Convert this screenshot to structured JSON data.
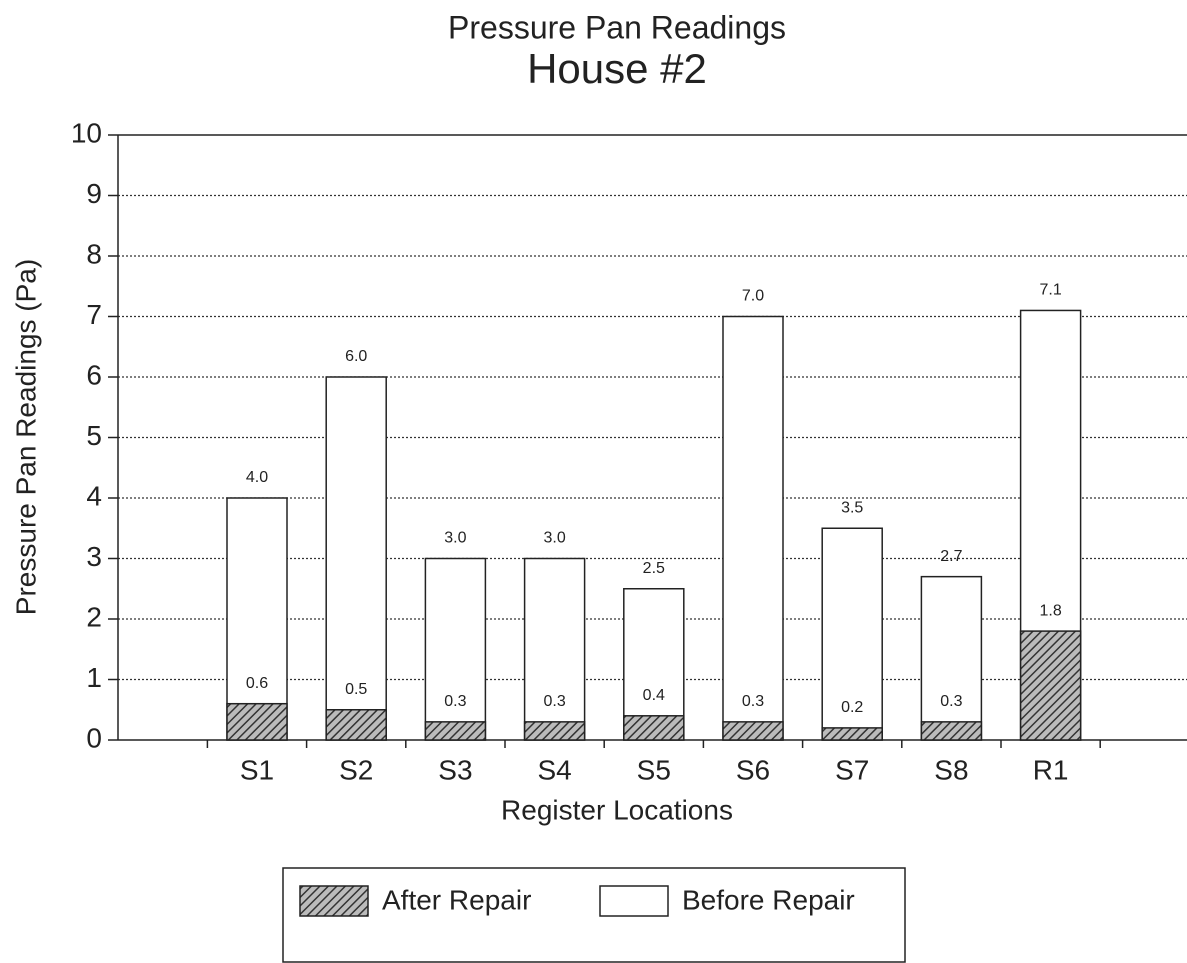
{
  "chart_data": {
    "type": "bar",
    "title": "Pressure Pan Readings",
    "subtitle": "House #2",
    "x_label": "Register Locations",
    "y_label": "Pressure Pan Readings (Pa)",
    "categories": [
      "S1",
      "S2",
      "S3",
      "S4",
      "S5",
      "S6",
      "S7",
      "S8",
      "R1"
    ],
    "series": [
      {
        "name": "After Repair",
        "color": "#444444",
        "pattern": "hatch",
        "values": [
          0.6,
          0.5,
          0.3,
          0.3,
          0.4,
          0.3,
          0.2,
          0.3,
          1.8
        ],
        "value_labels": [
          "0.6",
          "0.5",
          "0.3",
          "0.3",
          "0.4",
          "0.3",
          "0.2",
          "0.3",
          "1.8"
        ]
      },
      {
        "name": "Before Repair",
        "color": "#ffffff",
        "values": [
          4.0,
          6.0,
          3.0,
          3.0,
          2.5,
          7.0,
          3.5,
          2.7,
          7.1
        ],
        "value_labels": [
          "4.0",
          "6.0",
          "3.0",
          "3.0",
          "2.5",
          "7.0",
          "3.5",
          "2.7",
          "7.1"
        ]
      }
    ],
    "overlap": true,
    "ylim": [
      0,
      10
    ],
    "yticks": [
      0,
      1,
      2,
      3,
      4,
      5,
      6,
      7,
      8,
      9,
      10
    ],
    "grid": true,
    "legend": "bottom"
  }
}
